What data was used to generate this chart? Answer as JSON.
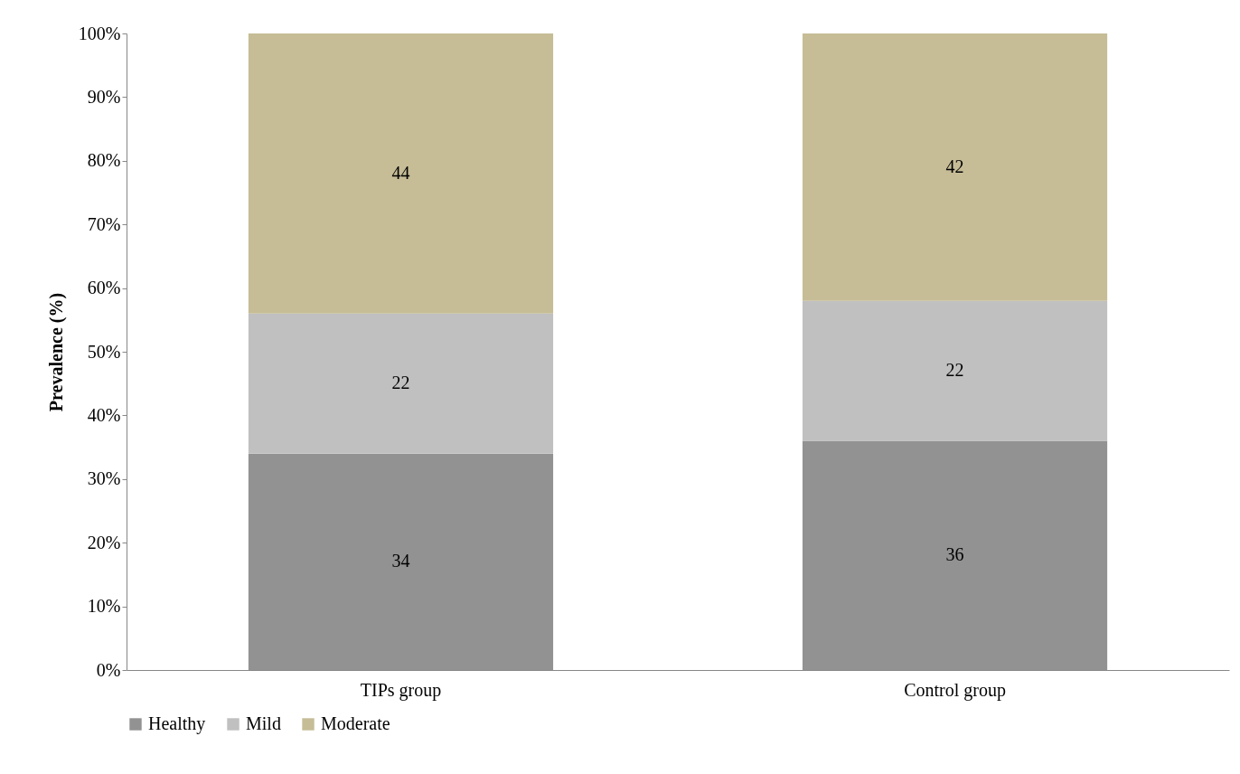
{
  "chart_data": {
    "type": "bar",
    "stacked": true,
    "ylabel": "Prevalence (%)",
    "categories": [
      "TIPs group",
      "Control group"
    ],
    "series": [
      {
        "name": "Healthy",
        "color": "#929292",
        "values": [
          34,
          36
        ]
      },
      {
        "name": "Mild",
        "color": "#c0c0c0",
        "values": [
          22,
          22
        ]
      },
      {
        "name": "Moderate",
        "color": "#c6bd97",
        "values": [
          44,
          42
        ]
      }
    ],
    "ylim": [
      0,
      100
    ],
    "yticks": [
      {
        "value": 0,
        "label": "0%"
      },
      {
        "value": 10,
        "label": "10%"
      },
      {
        "value": 20,
        "label": "20%"
      },
      {
        "value": 30,
        "label": "30%"
      },
      {
        "value": 40,
        "label": "40%"
      },
      {
        "value": 50,
        "label": "50%"
      },
      {
        "value": 60,
        "label": "60%"
      },
      {
        "value": 70,
        "label": "70%"
      },
      {
        "value": 80,
        "label": "80%"
      },
      {
        "value": 90,
        "label": "90%"
      },
      {
        "value": 100,
        "label": "100%"
      }
    ],
    "data_labels": true,
    "legend": "bottom",
    "grid": false
  }
}
